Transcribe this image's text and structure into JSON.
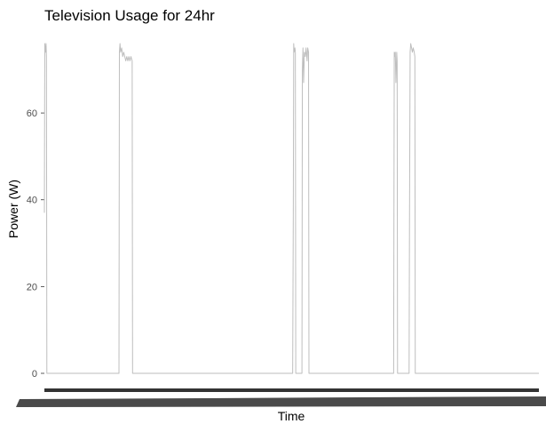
{
  "chart_data": {
    "type": "line",
    "title": "Television Usage for 24hr",
    "xlabel": "Time",
    "ylabel": "Power (W)",
    "ylim": [
      0,
      76
    ],
    "y_ticks": [
      0,
      20,
      40,
      60
    ],
    "xlim": [
      0,
      24
    ],
    "grid": false,
    "legend": "none",
    "colors": {
      "line": "#bebebe",
      "axis": "#333333",
      "tick_text": "#4d4d4d"
    },
    "series": [
      {
        "x": [
          0.0,
          0.02,
          0.05,
          0.08,
          0.1,
          0.11,
          0.12,
          3.62,
          3.64,
          3.67,
          3.7,
          3.75,
          3.8,
          3.85,
          3.9,
          3.95,
          4.0,
          4.05,
          4.1,
          4.15,
          4.2,
          4.26,
          4.28,
          12.05,
          12.08,
          12.1,
          12.12,
          12.16,
          12.18,
          12.2,
          12.22,
          12.24,
          12.26,
          12.5,
          12.52,
          12.55,
          12.58,
          12.62,
          12.66,
          12.7,
          12.75,
          12.78,
          12.82,
          12.84,
          16.95,
          16.98,
          17.0,
          17.03,
          17.06,
          17.1,
          17.12,
          17.14,
          17.16,
          17.18,
          17.7,
          17.72,
          17.75,
          17.78,
          17.82,
          17.86,
          17.9,
          17.95,
          17.98,
          18.0,
          24.0
        ],
        "y": [
          37,
          76,
          74,
          76,
          73,
          40,
          0,
          0,
          74,
          76,
          74,
          75,
          73,
          74,
          73,
          72,
          73,
          72,
          73,
          72,
          73,
          72,
          0,
          0,
          37,
          76,
          74,
          75,
          74,
          0,
          0,
          0,
          0,
          0,
          70,
          75,
          67,
          74,
          73,
          75,
          72,
          75,
          74,
          0,
          0,
          74,
          73,
          74,
          67,
          74,
          72,
          0,
          0,
          0,
          0,
          35,
          74,
          76,
          75,
          74,
          75,
          74,
          73,
          0,
          0
        ]
      }
    ]
  }
}
